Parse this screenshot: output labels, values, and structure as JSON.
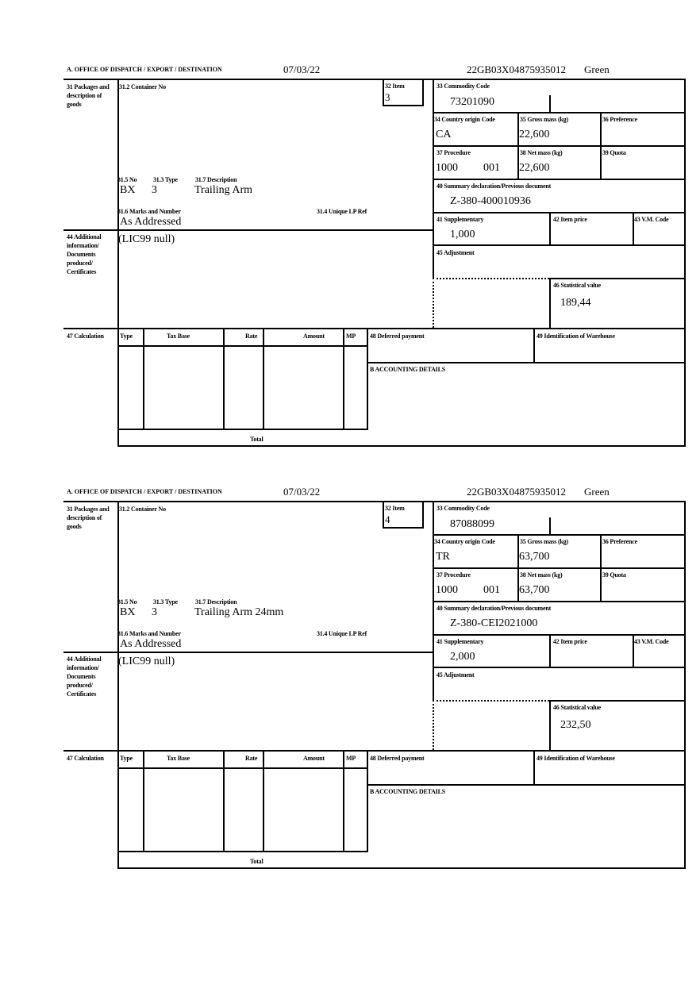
{
  "labels": {
    "office": "A.  OFFICE OF DISPATCH / EXPORT / DESTINATION",
    "packages": "31 Packages and description of goods",
    "container_no": "31.2 Container No",
    "item": "32 Item",
    "no": "31.5 No",
    "type": "31.3 Type",
    "description": "31.7 Description",
    "marks": "31.6 Marks and Number",
    "unique_lp": "31.4 Unique LP Ref",
    "additional": "44 Additional information/ Documents produced/ Certificates",
    "commodity_code": "33 Commodity Code",
    "country_origin": "34 Country origin Code",
    "gross_mass": "35 Gross mass (kg)",
    "preference": "36 Preference",
    "procedure": "37 Procedure",
    "net_mass": "38 Net mass (kg)",
    "quota": "39 Quota",
    "summary_decl": "40 Summary declaration/Previous document",
    "supplementary": "41 Supplementary",
    "item_price": "42 Item price",
    "vm_code": "43 V.M. Code",
    "adjustment": "45 Adjustment",
    "statistical_value": "46 Statistical value",
    "calculation": "47 Calculation",
    "calc_headers": [
      "Type",
      "Tax Base",
      "Rate",
      "Amount",
      "MP"
    ],
    "total": "Total",
    "deferred_payment": "48 Deferred payment",
    "warehouse": "49 Identification of Warehouse",
    "accounting": "B ACCOUNTING DETAILS"
  },
  "forms": [
    {
      "date": "07/03/22",
      "reference": "22GB03X04875935012",
      "route": "Green",
      "item": "3",
      "pkg_kind": "BX",
      "pkg_count": "3",
      "description": "Trailing Arm",
      "marks": "As Addressed",
      "additional_info": "(LIC99 null)",
      "commodity_code": "73201090",
      "country_origin": "CA",
      "gross_mass": "22,600",
      "procedure": "1000",
      "procedure_additional": "001",
      "net_mass": "22,600",
      "previous_document": "Z-380-400010936",
      "supplementary": "1,000",
      "statistical_value": "189,44"
    },
    {
      "date": "07/03/22",
      "reference": "22GB03X04875935012",
      "route": "Green",
      "item": "4",
      "pkg_kind": "BX",
      "pkg_count": "3",
      "description": "Trailing Arm 24mm",
      "marks": "As Addressed",
      "additional_info": "(LIC99 null)",
      "commodity_code": "87088099",
      "country_origin": "TR",
      "gross_mass": "63,700",
      "procedure": "1000",
      "procedure_additional": "001",
      "net_mass": "63,700",
      "previous_document": "Z-380-CEI2021000",
      "supplementary": "2,000",
      "statistical_value": "232,50"
    }
  ]
}
